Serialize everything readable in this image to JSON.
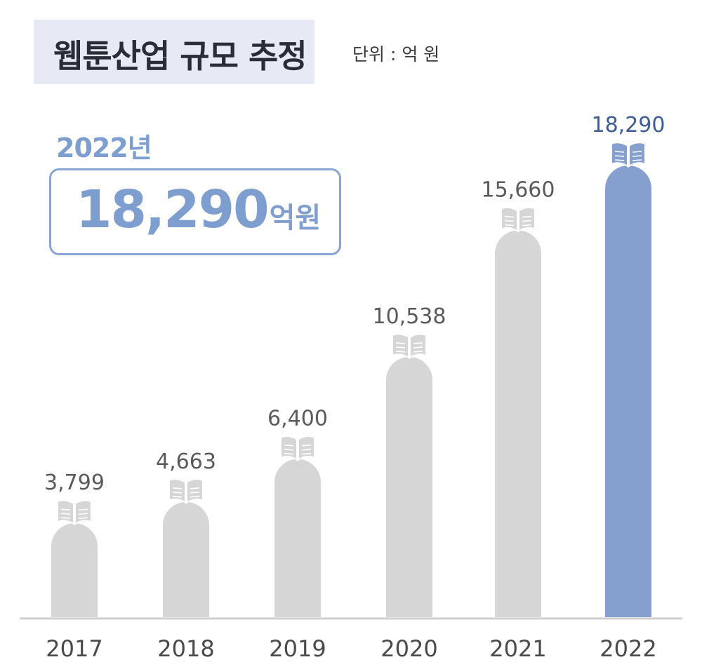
{
  "title": "웹툰산업 규모 추정",
  "unit_label": "단위 : 억 원",
  "highlight": {
    "year_label": "2022년",
    "value_text": "18,290",
    "unit_text": "억원"
  },
  "colors": {
    "bar_default": "#d6d6d6",
    "bar_highlight": "#859fcf",
    "label_default": "#5a5a5a",
    "label_highlight": "#3e5d96",
    "title_bg": "#e7e9f5",
    "accent": "#7f9ed0"
  },
  "chart_data": {
    "type": "bar",
    "categories": [
      "2017",
      "2018",
      "2019",
      "2020",
      "2021",
      "2022"
    ],
    "values": [
      3799,
      4663,
      6400,
      10538,
      15660,
      18290
    ],
    "value_labels": [
      "3,799",
      "4,663",
      "6,400",
      "10,538",
      "15,660",
      "18,290"
    ],
    "highlight_index": 5,
    "title": "웹툰산업 규모 추정",
    "xlabel": "",
    "ylabel": "",
    "ylim": [
      0,
      18290
    ],
    "grid": false,
    "bar_icon": "open-book-icon"
  }
}
